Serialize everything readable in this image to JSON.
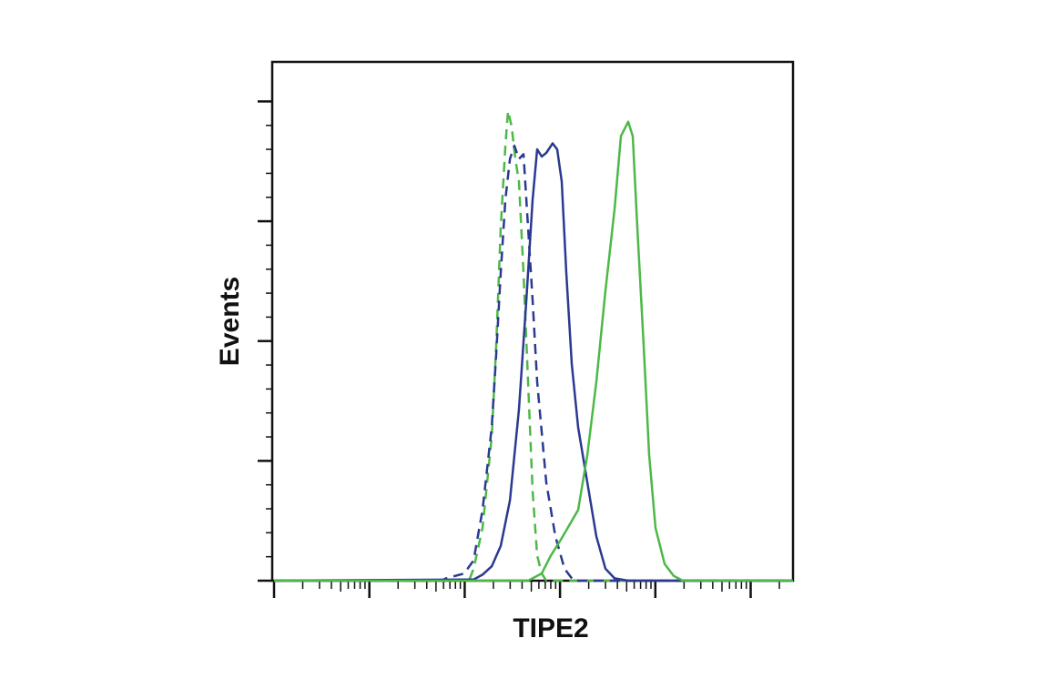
{
  "chart_data": {
    "type": "line",
    "x_label": "TIPE2",
    "y_label": "Events",
    "xscale": "log",
    "xlim": [
      1,
      278000
    ],
    "xticks": [
      1,
      10,
      100,
      1000,
      10000,
      100000
    ],
    "ylim": [
      0,
      4.33
    ],
    "yticks": [
      0,
      1,
      2,
      3,
      4
    ],
    "series": [
      {
        "color": "#4db848",
        "dash": true,
        "x": [
          1,
          111,
          124,
          154,
          192,
          214,
          239,
          267,
          285,
          311,
          340,
          371,
          414,
          462,
          516,
          576,
          643,
          718,
          278000
        ],
        "values": [
          0,
          0,
          0.1,
          0.44,
          1.2,
          1.96,
          2.95,
          3.63,
          3.92,
          3.79,
          3.52,
          3.33,
          2.57,
          1.66,
          0.75,
          0.21,
          0.06,
          0,
          0
        ]
      },
      {
        "color": "#2b3990",
        "dash": true,
        "x": [
          1,
          57.2,
          63.9,
          99,
          124,
          154,
          192,
          214,
          239,
          267,
          298,
          332,
          371,
          414,
          462,
          516,
          576,
          718,
          893,
          1114,
          1387,
          278000
        ],
        "values": [
          0,
          0,
          0.02,
          0.06,
          0.17,
          0.59,
          1.28,
          1.89,
          2.57,
          3.18,
          3.52,
          3.63,
          3.52,
          3.56,
          2.95,
          2.34,
          1.66,
          0.82,
          0.37,
          0.1,
          0,
          0
        ]
      },
      {
        "color": "#2b3990",
        "dash": false,
        "x": [
          1,
          124,
          154,
          192,
          239,
          298,
          371,
          443,
          516,
          576,
          643,
          718,
          837,
          934,
          1042,
          1164,
          1328,
          1549,
          1932,
          2404,
          2999,
          3733,
          5188,
          278000
        ],
        "values": [
          0,
          0.01,
          0.05,
          0.12,
          0.29,
          0.67,
          1.43,
          2.34,
          3.18,
          3.6,
          3.54,
          3.57,
          3.65,
          3.6,
          3.33,
          2.57,
          1.81,
          1.28,
          0.82,
          0.37,
          0.1,
          0.02,
          0,
          0
        ]
      },
      {
        "color": "#4db848",
        "dash": false,
        "x": [
          1,
          462,
          643,
          801,
          998,
          1245,
          1549,
          1932,
          2404,
          2999,
          3733,
          4356,
          5188,
          5794,
          6471,
          7551,
          8610,
          10046,
          12500,
          15590,
          19410,
          278000
        ],
        "values": [
          0,
          0,
          0.06,
          0.21,
          0.33,
          0.46,
          0.59,
          1.05,
          1.66,
          2.42,
          3.1,
          3.71,
          3.83,
          3.71,
          2.95,
          1.96,
          1.05,
          0.44,
          0.14,
          0.04,
          0,
          0
        ]
      }
    ]
  }
}
